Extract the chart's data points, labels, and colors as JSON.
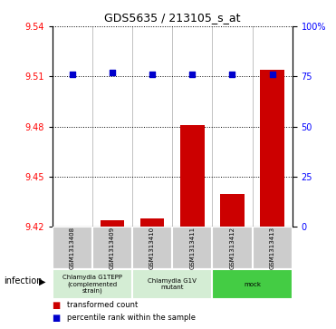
{
  "title": "GDS5635 / 213105_s_at",
  "samples": [
    "GSM1313408",
    "GSM1313409",
    "GSM1313410",
    "GSM1313411",
    "GSM1313412",
    "GSM1313413"
  ],
  "transformed_counts": [
    9.414,
    9.424,
    9.425,
    9.481,
    9.44,
    9.514
  ],
  "percentile_ranks_pct": [
    76,
    77,
    76,
    76,
    76,
    76
  ],
  "bar_color": "#cc0000",
  "dot_color": "#0000cc",
  "ylim_left": [
    9.42,
    9.54
  ],
  "ylim_right": [
    0,
    100
  ],
  "yticks_left": [
    9.42,
    9.45,
    9.48,
    9.51,
    9.54
  ],
  "yticks_right": [
    0,
    25,
    50,
    75,
    100
  ],
  "ytick_labels_right": [
    "0",
    "25",
    "50",
    "75",
    "100%"
  ],
  "group_ranges": [
    [
      0,
      1
    ],
    [
      2,
      3
    ],
    [
      4,
      5
    ]
  ],
  "group_colors": [
    "#d4edd4",
    "#d4edd4",
    "#44cc44"
  ],
  "group_labels": [
    "Chlamydia G1TEPP\n(complemented\nstrain)",
    "Chlamydia G1V\nmutant",
    "mock"
  ],
  "factor_label": "infection",
  "legend_items": [
    {
      "color": "#cc0000",
      "marker": "s",
      "label": "transformed count"
    },
    {
      "color": "#0000cc",
      "marker": "s",
      "label": "percentile rank within the sample"
    }
  ],
  "bar_bottom": 9.42,
  "background_color": "#ffffff",
  "sample_box_color": "#cccccc",
  "cell_edge_color": "#ffffff"
}
